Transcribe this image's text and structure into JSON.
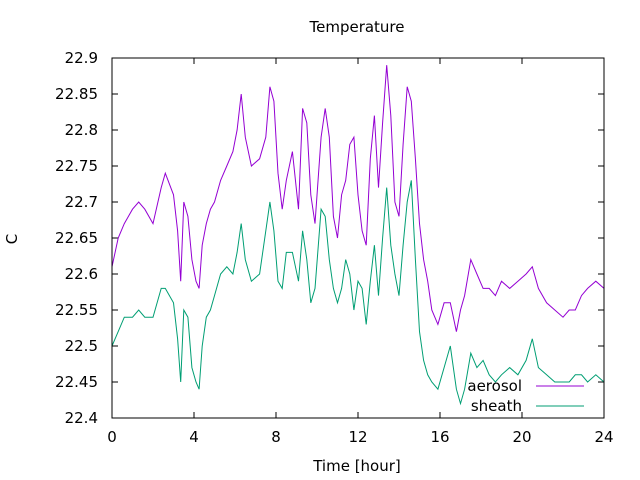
{
  "chart_data": {
    "type": "line",
    "title": "Temperature",
    "xlabel": "Time [hour]",
    "ylabel": "C",
    "xlim": [
      0,
      24
    ],
    "ylim": [
      22.4,
      22.9
    ],
    "xticks": [
      0,
      4,
      8,
      12,
      16,
      20,
      24
    ],
    "yticks": [
      22.4,
      22.45,
      22.5,
      22.55,
      22.6,
      22.65,
      22.7,
      22.75,
      22.8,
      22.85,
      22.9
    ],
    "grid": false,
    "legend_position": "bottom-right",
    "series": [
      {
        "name": "aerosol",
        "color": "#9400d3",
        "x": [
          0,
          0.3,
          0.6,
          1.0,
          1.3,
          1.6,
          2.0,
          2.4,
          2.6,
          3.0,
          3.2,
          3.35,
          3.5,
          3.7,
          3.9,
          4.1,
          4.25,
          4.4,
          4.6,
          4.8,
          5.0,
          5.3,
          5.6,
          5.9,
          6.1,
          6.3,
          6.5,
          6.8,
          7.2,
          7.5,
          7.7,
          7.9,
          8.1,
          8.3,
          8.5,
          8.8,
          9.1,
          9.3,
          9.5,
          9.7,
          9.9,
          10.2,
          10.4,
          10.6,
          10.8,
          11.0,
          11.2,
          11.4,
          11.6,
          11.8,
          12.0,
          12.2,
          12.4,
          12.6,
          12.8,
          13.0,
          13.2,
          13.4,
          13.6,
          13.8,
          14.0,
          14.2,
          14.4,
          14.6,
          14.8,
          15.0,
          15.2,
          15.4,
          15.6,
          15.9,
          16.2,
          16.5,
          16.8,
          17.0,
          17.2,
          17.5,
          17.8,
          18.1,
          18.4,
          18.7,
          19.0,
          19.4,
          19.8,
          20.2,
          20.5,
          20.8,
          21.2,
          21.6,
          22.0,
          22.3,
          22.6,
          22.9,
          23.2,
          23.6,
          24.0
        ],
        "y": [
          22.61,
          22.65,
          22.67,
          22.69,
          22.7,
          22.69,
          22.67,
          22.72,
          22.74,
          22.71,
          22.66,
          22.59,
          22.7,
          22.68,
          22.62,
          22.59,
          22.58,
          22.64,
          22.67,
          22.69,
          22.7,
          22.73,
          22.75,
          22.77,
          22.8,
          22.85,
          22.79,
          22.75,
          22.76,
          22.79,
          22.86,
          22.84,
          22.74,
          22.69,
          22.73,
          22.77,
          22.69,
          22.83,
          22.81,
          22.71,
          22.67,
          22.79,
          22.83,
          22.79,
          22.68,
          22.65,
          22.71,
          22.73,
          22.78,
          22.79,
          22.71,
          22.66,
          22.64,
          22.76,
          22.82,
          22.72,
          22.81,
          22.89,
          22.82,
          22.7,
          22.68,
          22.78,
          22.86,
          22.84,
          22.76,
          22.67,
          22.62,
          22.59,
          22.55,
          22.53,
          22.56,
          22.56,
          22.52,
          22.55,
          22.57,
          22.62,
          22.6,
          22.58,
          22.58,
          22.57,
          22.59,
          22.58,
          22.59,
          22.6,
          22.61,
          22.58,
          22.56,
          22.55,
          22.54,
          22.55,
          22.55,
          22.57,
          22.58,
          22.59,
          22.58
        ]
      },
      {
        "name": "sheath",
        "color": "#009e73",
        "x": [
          0,
          0.3,
          0.6,
          1.0,
          1.3,
          1.6,
          2.0,
          2.4,
          2.6,
          3.0,
          3.2,
          3.35,
          3.5,
          3.7,
          3.9,
          4.1,
          4.25,
          4.4,
          4.6,
          4.8,
          5.0,
          5.3,
          5.6,
          5.9,
          6.1,
          6.3,
          6.5,
          6.8,
          7.2,
          7.5,
          7.7,
          7.9,
          8.1,
          8.3,
          8.5,
          8.8,
          9.1,
          9.3,
          9.5,
          9.7,
          9.9,
          10.2,
          10.4,
          10.6,
          10.8,
          11.0,
          11.2,
          11.4,
          11.6,
          11.8,
          12.0,
          12.2,
          12.4,
          12.6,
          12.8,
          13.0,
          13.2,
          13.4,
          13.6,
          13.8,
          14.0,
          14.2,
          14.4,
          14.6,
          14.8,
          15.0,
          15.2,
          15.4,
          15.6,
          15.9,
          16.2,
          16.5,
          16.8,
          17.0,
          17.2,
          17.5,
          17.8,
          18.1,
          18.4,
          18.7,
          19.0,
          19.4,
          19.8,
          20.2,
          20.5,
          20.8,
          21.2,
          21.6,
          22.0,
          22.3,
          22.6,
          22.9,
          23.2,
          23.6,
          24.0
        ],
        "y": [
          22.5,
          22.52,
          22.54,
          22.54,
          22.55,
          22.54,
          22.54,
          22.58,
          22.58,
          22.56,
          22.51,
          22.45,
          22.55,
          22.54,
          22.47,
          22.45,
          22.44,
          22.5,
          22.54,
          22.55,
          22.57,
          22.6,
          22.61,
          22.6,
          22.63,
          22.67,
          22.62,
          22.59,
          22.6,
          22.66,
          22.7,
          22.66,
          22.59,
          22.58,
          22.63,
          22.63,
          22.59,
          22.66,
          22.62,
          22.56,
          22.58,
          22.69,
          22.68,
          22.62,
          22.58,
          22.56,
          22.58,
          22.62,
          22.6,
          22.55,
          22.59,
          22.58,
          22.53,
          22.59,
          22.64,
          22.57,
          22.65,
          22.72,
          22.64,
          22.6,
          22.57,
          22.64,
          22.7,
          22.73,
          22.62,
          22.52,
          22.48,
          22.46,
          22.45,
          22.44,
          22.47,
          22.5,
          22.44,
          22.42,
          22.44,
          22.49,
          22.47,
          22.48,
          22.46,
          22.45,
          22.46,
          22.47,
          22.46,
          22.48,
          22.51,
          22.47,
          22.46,
          22.45,
          22.45,
          22.45,
          22.46,
          22.46,
          22.45,
          22.46,
          22.45
        ]
      }
    ]
  }
}
